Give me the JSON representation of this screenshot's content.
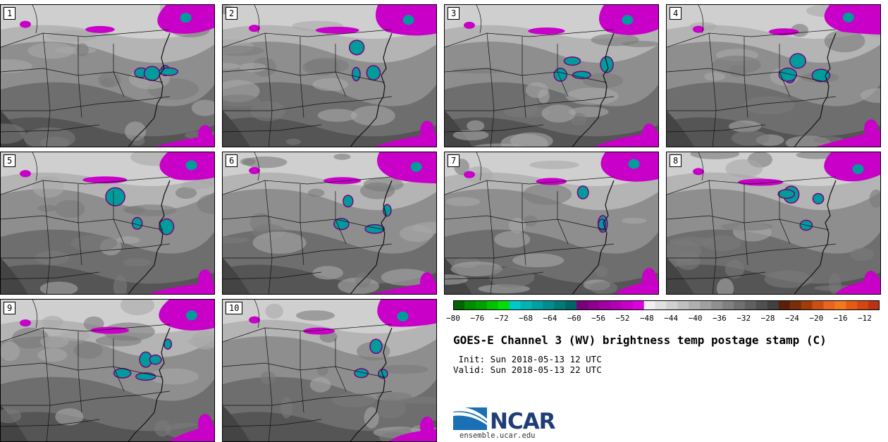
{
  "panels": [
    "1",
    "2",
    "3",
    "4",
    "5",
    "6",
    "7",
    "8",
    "9",
    "10"
  ],
  "colorbar": {
    "ticks": [
      "-80",
      "-76",
      "-72",
      "-68",
      "-64",
      "-60",
      "-56",
      "-52",
      "-48",
      "-44",
      "-40",
      "-36",
      "-32",
      "-28",
      "-24",
      "-20",
      "-16",
      "-12"
    ],
    "colors": [
      "#006400",
      "#008b00",
      "#00a000",
      "#00c000",
      "#00e000",
      "#00c8c8",
      "#00b4b4",
      "#00a0a0",
      "#008c8c",
      "#007878",
      "#006464",
      "#7a007a",
      "#8c008c",
      "#a000a0",
      "#b400b4",
      "#c800c8",
      "#dc00dc",
      "#f0f0f0",
      "#e0e0e0",
      "#d0d0d0",
      "#c0c0c0",
      "#b0b0b0",
      "#a0a0a0",
      "#909090",
      "#808080",
      "#707070",
      "#606060",
      "#505050",
      "#404040",
      "#5a1e0a",
      "#7a2d0a",
      "#a03c0a",
      "#c85014",
      "#e6641e",
      "#f0781e",
      "#e65a14",
      "#d24614",
      "#be3214"
    ]
  },
  "title": "GOES-E Channel 3 (WV) brightness temp postage stamp (C)",
  "init": " Init: Sun 2018-05-13 12 UTC",
  "valid": "Valid: Sun 2018-05-13 22 UTC",
  "logo": {
    "name": "NCAR",
    "url": "ensemble.ucar.edu"
  }
}
